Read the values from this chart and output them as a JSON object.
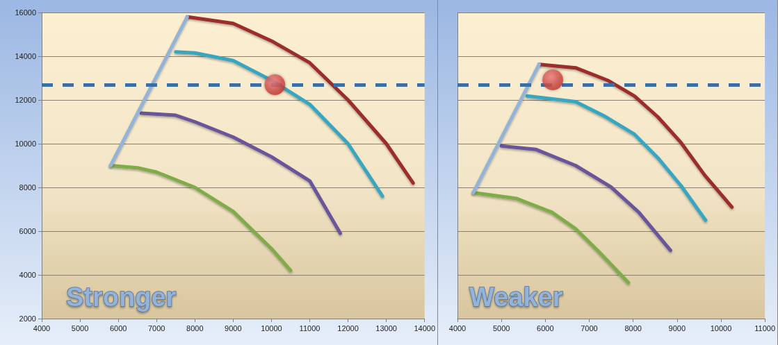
{
  "chart_data": [
    {
      "type": "line",
      "title": "Stronger",
      "xlim": [
        4000,
        14000
      ],
      "xticks": [
        4000,
        5000,
        6000,
        7000,
        8000,
        9000,
        10000,
        11000,
        12000,
        13000,
        14000
      ],
      "ylim": [
        2000,
        16000
      ],
      "yticks": [
        2000,
        4000,
        6000,
        8000,
        10000,
        12000,
        14000,
        16000
      ],
      "grid": "y",
      "line_style": "solid",
      "ref_lines": [
        {
          "axis": "y",
          "value": 12700,
          "color": "#3a6ea5",
          "line_style": "dashed"
        }
      ],
      "series": [
        {
          "color": "#9b2d2a",
          "x": [
            7800,
            9000,
            10000,
            11000,
            12000,
            13000,
            13700
          ],
          "values": [
            15800,
            15500,
            14700,
            13700,
            12000,
            10000,
            8200
          ]
        },
        {
          "color": "#38a6c0",
          "x": [
            7500,
            8000,
            9000,
            10000,
            11000,
            12000,
            12900
          ],
          "values": [
            14200,
            14150,
            13800,
            12900,
            11800,
            10000,
            7600
          ]
        },
        {
          "color": "#6a559a",
          "x": [
            6600,
            7500,
            8000,
            9000,
            10000,
            11000,
            11800
          ],
          "values": [
            11400,
            11300,
            11000,
            10300,
            9400,
            8300,
            5900
          ]
        },
        {
          "color": "#80ab4a",
          "x": [
            5800,
            6500,
            7000,
            8000,
            9000,
            10000,
            10500
          ],
          "values": [
            9000,
            8900,
            8700,
            8000,
            6900,
            5200,
            4200
          ]
        },
        {
          "color": "#95b3d7",
          "x": [
            5800,
            7800
          ],
          "values": [
            9000,
            15800
          ]
        },
        {
          "type": "scatter",
          "marker": "circle",
          "color": "#c0302a",
          "x": [
            10090
          ],
          "values": [
            12700
          ]
        }
      ]
    },
    {
      "type": "line",
      "title": "Weaker",
      "xlim": [
        4000,
        11000
      ],
      "xticks": [
        4000,
        5000,
        6000,
        7000,
        8000,
        9000,
        10000,
        11000
      ],
      "ylim": [
        2000,
        16000
      ],
      "yticks": [
        2000,
        4000,
        6000,
        8000,
        10000,
        12000,
        14000,
        16000
      ],
      "tick_labels": "x",
      "grid": "y",
      "line_style": "solid",
      "ref_lines": [
        {
          "axis": "y",
          "value": 12700,
          "color": "#3a6ea5",
          "line_style": "dashed"
        }
      ],
      "series": [
        {
          "color": "#9b2d2a",
          "x": [
            5860,
            6690,
            7440,
            8030,
            8560,
            9090,
            9630,
            10250
          ],
          "values": [
            13630,
            13470,
            12880,
            12180,
            11230,
            10050,
            8560,
            7100
          ]
        },
        {
          "color": "#38a6c0",
          "x": [
            5590,
            6690,
            7330,
            8030,
            8560,
            9090,
            9650
          ],
          "values": [
            12180,
            11920,
            11280,
            10430,
            9360,
            8080,
            6500
          ]
        },
        {
          "color": "#6a559a",
          "x": [
            5000,
            5780,
            6690,
            7490,
            8130,
            8850
          ],
          "values": [
            9900,
            9740,
            9000,
            8030,
            6860,
            5120
          ]
        },
        {
          "color": "#80ab4a",
          "x": [
            4360,
            5350,
            6150,
            6690,
            7230,
            7890
          ],
          "values": [
            7760,
            7490,
            6860,
            6110,
            5040,
            3650
          ]
        },
        {
          "color": "#95b3d7",
          "x": [
            4360,
            5860
          ],
          "values": [
            7760,
            13630
          ]
        },
        {
          "type": "scatter",
          "marker": "circle",
          "color": "#c0302a",
          "x": [
            6170
          ],
          "values": [
            12920
          ]
        }
      ]
    }
  ]
}
